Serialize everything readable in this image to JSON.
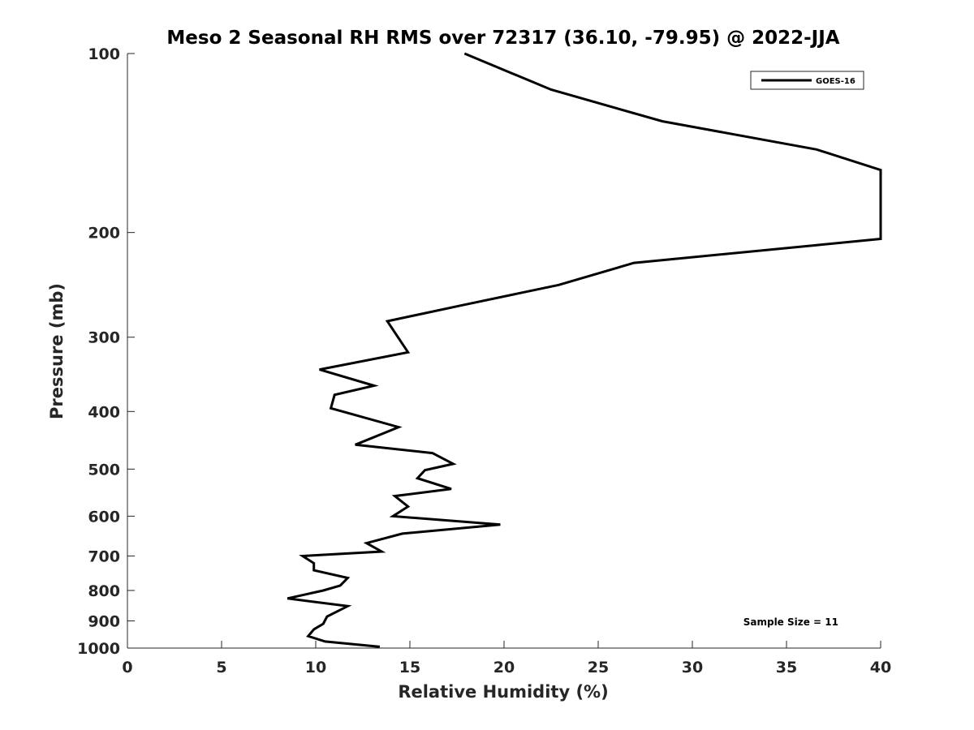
{
  "chart_data": {
    "type": "line",
    "title": "Meso 2 Seasonal RH RMS over 72317 (36.10, -79.95) @ 2022-JJA",
    "xlabel": "Relative Humidity (%)",
    "ylabel": "Pressure (mb)",
    "xlim": [
      0,
      40
    ],
    "ylim": [
      100,
      1000
    ],
    "y_scale": "log",
    "y_reversed": true,
    "x_ticks": [
      0,
      5,
      10,
      15,
      20,
      25,
      30,
      35,
      40
    ],
    "x_tick_labels": [
      "0",
      "5",
      "10",
      "15",
      "20",
      "25",
      "30",
      "35",
      "40"
    ],
    "y_ticks": [
      100,
      200,
      300,
      400,
      500,
      600,
      700,
      800,
      900,
      1000
    ],
    "y_tick_labels": [
      "100",
      "200",
      "300",
      "400",
      "500",
      "600",
      "700",
      "800",
      "900",
      "1000"
    ],
    "grid": false,
    "legend_position": "top-right",
    "annotation": "Sample Size = 11",
    "series": [
      {
        "name": "GOES-16",
        "color": "#000000",
        "x": [
          17.9,
          22.5,
          28.4,
          36.6,
          40.0,
          40.0,
          36.6,
          26.9,
          22.9,
          17.8,
          13.8,
          14.9,
          10.2,
          13.1,
          11.0,
          10.8,
          14.4,
          12.1,
          16.2,
          17.3,
          15.8,
          15.4,
          17.2,
          14.2,
          14.9,
          14.1,
          19.8,
          14.6,
          12.7,
          13.5,
          9.3,
          9.9,
          9.9,
          11.7,
          11.3,
          10.4,
          8.5,
          11.7,
          10.6,
          10.4,
          9.9,
          9.6,
          10.5,
          13.4
        ],
        "y": [
          100,
          115,
          130,
          145,
          157,
          205,
          210,
          225,
          245,
          265,
          282,
          318,
          340,
          362,
          375,
          395,
          425,
          455,
          470,
          490,
          502,
          518,
          540,
          555,
          578,
          600,
          620,
          642,
          666,
          688,
          700,
          720,
          740,
          762,
          785,
          800,
          825,
          850,
          885,
          910,
          930,
          955,
          975,
          995
        ]
      }
    ]
  }
}
